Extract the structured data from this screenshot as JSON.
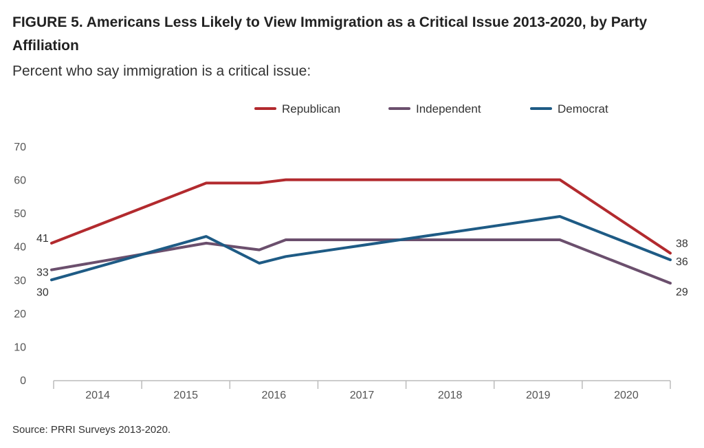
{
  "title": "FIGURE 5. Americans Less Likely to View Immigration as a Critical Issue 2013-2020, by Party Affiliation",
  "subtitle": "Percent who say immigration is a critical issue:",
  "source": "Source: PRRI Surveys 2013-2020.",
  "chart_data": {
    "type": "line",
    "title": "FIGURE 5. Americans Less Likely to View Immigration as a Critical Issue 2013-2020, by Party Affiliation",
    "subtitle": "Percent who say immigration is a critical issue:",
    "x_tick_labels": [
      "2014",
      "2015",
      "2016",
      "2017",
      "2018",
      "2019",
      "2020"
    ],
    "y_ticks": [
      0,
      10,
      20,
      30,
      40,
      50,
      60,
      70
    ],
    "ylim": [
      0,
      70
    ],
    "grid": false,
    "legend_position": "top",
    "series": [
      {
        "name": "Republican",
        "color": "#b22a2e",
        "points": [
          {
            "x": 2013.0,
            "y": 41
          },
          {
            "x": 2014.75,
            "y": 59
          },
          {
            "x": 2015.35,
            "y": 59
          },
          {
            "x": 2015.65,
            "y": 60
          },
          {
            "x": 2018.75,
            "y": 60
          },
          {
            "x": 2020.0,
            "y": 38
          }
        ],
        "labels": [
          {
            "text": "41",
            "x": 2013.0,
            "y": 41
          },
          {
            "text": "38",
            "x": 2020.0,
            "y": 38
          }
        ]
      },
      {
        "name": "Independent",
        "color": "#6b4f6d",
        "points": [
          {
            "x": 2013.0,
            "y": 33
          },
          {
            "x": 2014.75,
            "y": 41
          },
          {
            "x": 2015.35,
            "y": 39
          },
          {
            "x": 2015.65,
            "y": 42
          },
          {
            "x": 2018.75,
            "y": 42
          },
          {
            "x": 2020.0,
            "y": 29
          }
        ],
        "labels": [
          {
            "text": "33",
            "x": 2013.0,
            "y": 33
          },
          {
            "text": "29",
            "x": 2020.0,
            "y": 29
          }
        ]
      },
      {
        "name": "Democrat",
        "color": "#1e5b85",
        "points": [
          {
            "x": 2013.0,
            "y": 30
          },
          {
            "x": 2014.75,
            "y": 43
          },
          {
            "x": 2015.35,
            "y": 35
          },
          {
            "x": 2015.65,
            "y": 37
          },
          {
            "x": 2018.75,
            "y": 49
          },
          {
            "x": 2020.0,
            "y": 36
          }
        ],
        "labels": [
          {
            "text": "30",
            "x": 2013.0,
            "y": 30
          },
          {
            "text": "36",
            "x": 2020.0,
            "y": 36
          }
        ]
      }
    ]
  }
}
